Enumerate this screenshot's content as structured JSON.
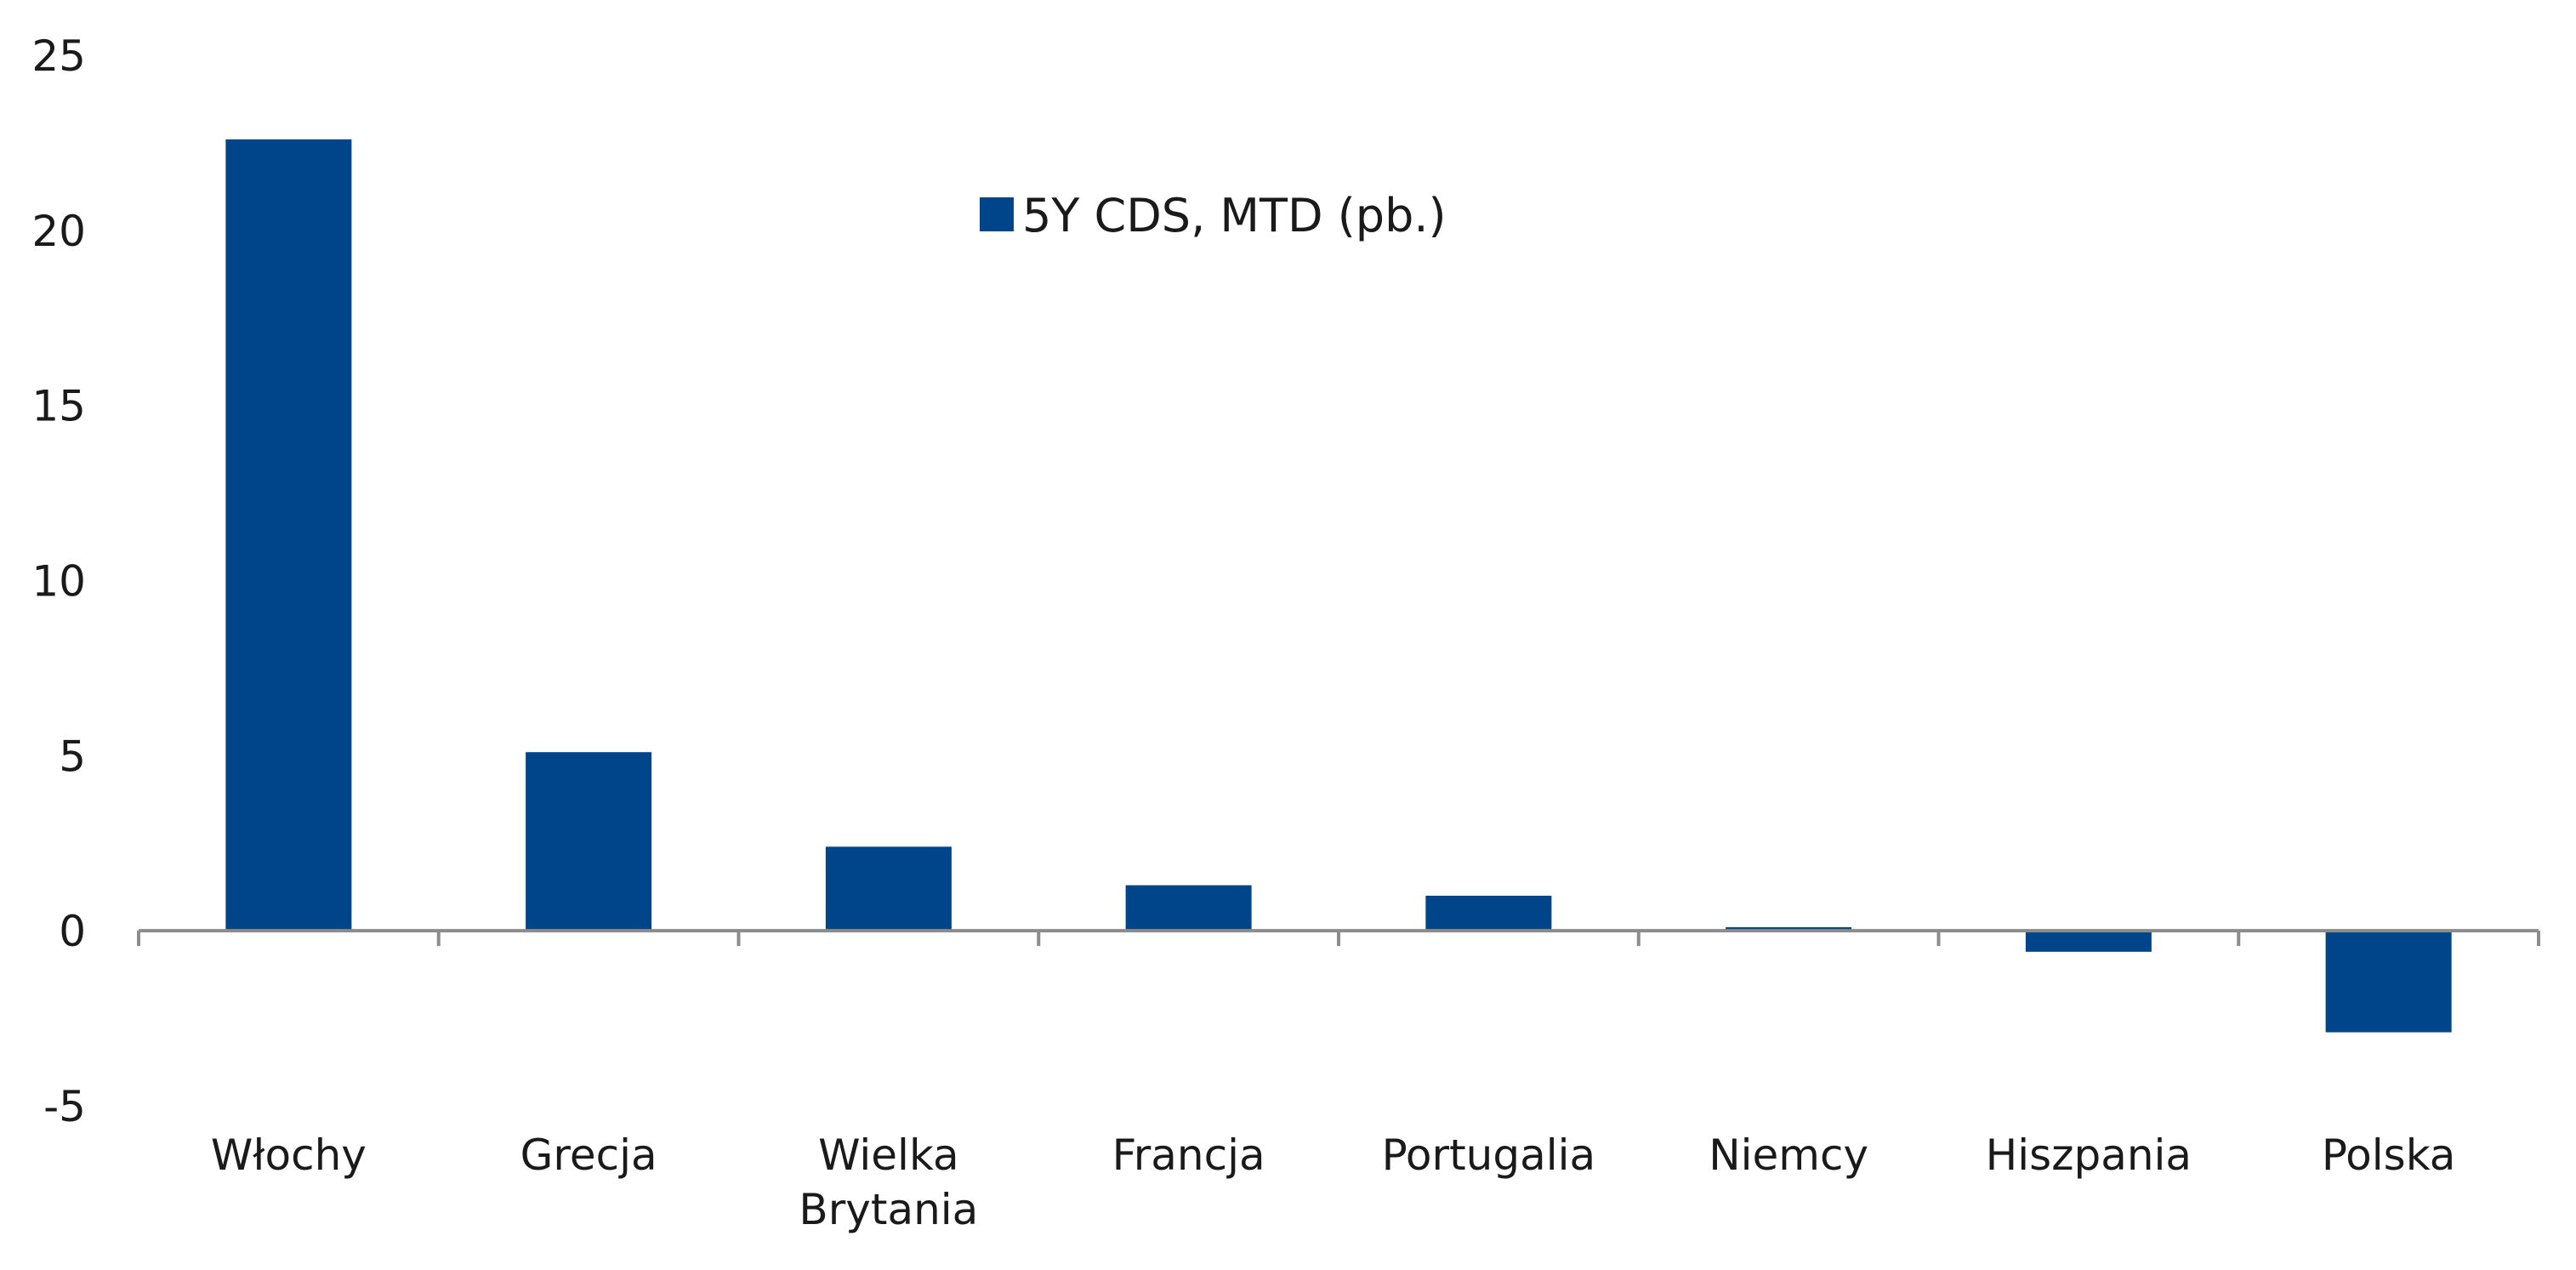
{
  "chart_data": {
    "type": "bar",
    "categories": [
      "Włochy",
      "Grecja",
      "Wielka Brytania",
      "Francja",
      "Portugalia",
      "Niemcy",
      "Hiszpania",
      "Polska"
    ],
    "category_lines": [
      [
        "Włochy"
      ],
      [
        "Grecja"
      ],
      [
        "Wielka",
        "Brytania"
      ],
      [
        "Francja"
      ],
      [
        "Portugalia"
      ],
      [
        "Niemcy"
      ],
      [
        "Hiszpania"
      ],
      [
        "Polska"
      ]
    ],
    "series": [
      {
        "name": "5Y CDS, MTD (pb.)",
        "values": [
          22.6,
          5.1,
          2.4,
          1.3,
          1.0,
          0.1,
          -0.6,
          -2.9
        ],
        "color": "#00458a"
      }
    ],
    "ylim": [
      -5,
      25
    ],
    "yticks": [
      -5,
      0,
      5,
      10,
      15,
      20,
      25
    ],
    "ytick_labels": [
      "-5",
      "0",
      "5",
      "10",
      "15",
      "20",
      "25"
    ],
    "title": "",
    "xlabel": "",
    "ylabel": "",
    "grid": false,
    "legend_position": "top-center",
    "axis_color": "#8c8c8c",
    "text_color": "#1a1a1a"
  }
}
